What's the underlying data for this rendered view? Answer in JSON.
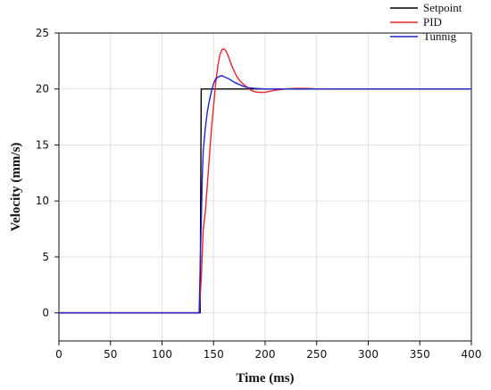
{
  "chart_data": {
    "type": "line",
    "xlabel": "Time (ms)",
    "ylabel": "Velocity (mm/s)",
    "xlim": [
      0,
      400
    ],
    "ylim": [
      -2.5,
      25
    ],
    "xticks": [
      0,
      50,
      100,
      150,
      200,
      250,
      300,
      350,
      400
    ],
    "yticks": [
      0,
      5,
      10,
      15,
      20,
      25
    ],
    "grid": true,
    "legend_position": "top-right",
    "series": [
      {
        "name": "Setpoint",
        "color": "#000000",
        "x": [
          0,
          137,
          138,
          400
        ],
        "y": [
          0,
          0,
          20,
          20
        ]
      },
      {
        "name": "PID",
        "color": "#e8262b",
        "x": [
          0,
          136,
          138,
          140,
          142,
          144,
          146,
          148,
          150,
          152,
          154,
          156,
          158,
          160,
          162,
          164,
          166,
          168,
          170,
          172,
          175,
          178,
          182,
          186,
          190,
          195,
          200,
          205,
          210,
          220,
          230,
          240,
          250,
          265
        ],
        "y": [
          0,
          0,
          3,
          7.5,
          9,
          11.5,
          14,
          16.5,
          18.5,
          20.5,
          22,
          23,
          23.5,
          23.6,
          23.4,
          23,
          22.5,
          22,
          21.6,
          21.2,
          20.8,
          20.5,
          20.2,
          19.9,
          19.75,
          19.7,
          19.7,
          19.8,
          19.9,
          20,
          20.05,
          20.05,
          20,
          20
        ]
      },
      {
        "name": "Tunnig",
        "color": "#2222cc",
        "x": [
          0,
          136,
          137,
          138,
          139,
          140,
          142,
          144,
          146,
          148,
          150,
          152,
          155,
          158,
          160,
          165,
          170,
          175,
          180,
          185,
          190,
          200,
          210,
          230,
          260,
          300,
          350,
          400
        ],
        "y": [
          0,
          0,
          4,
          8,
          12,
          14.5,
          16.5,
          18,
          19,
          19.8,
          20.5,
          20.9,
          21.1,
          21.2,
          21.1,
          20.9,
          20.6,
          20.4,
          20.2,
          20.1,
          20.05,
          20,
          20,
          20,
          20,
          20,
          20,
          20
        ]
      }
    ]
  }
}
